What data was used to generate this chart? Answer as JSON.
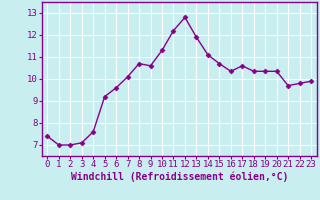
{
  "x": [
    0,
    1,
    2,
    3,
    4,
    5,
    6,
    7,
    8,
    9,
    10,
    11,
    12,
    13,
    14,
    15,
    16,
    17,
    18,
    19,
    20,
    21,
    22,
    23
  ],
  "y": [
    7.4,
    7.0,
    7.0,
    7.1,
    7.6,
    9.2,
    9.6,
    10.1,
    10.7,
    10.6,
    11.3,
    12.2,
    12.8,
    11.9,
    11.1,
    10.7,
    10.35,
    10.6,
    10.35,
    10.35,
    10.35,
    9.7,
    9.8,
    9.9
  ],
  "line_color": "#880088",
  "marker": "D",
  "marker_size": 2.5,
  "linewidth": 1.0,
  "xlabel": "Windchill (Refroidissement éolien,°C)",
  "xlabel_fontsize": 7,
  "xtick_labels": [
    "0",
    "1",
    "2",
    "3",
    "4",
    "5",
    "6",
    "7",
    "8",
    "9",
    "10",
    "11",
    "12",
    "13",
    "14",
    "15",
    "16",
    "17",
    "18",
    "19",
    "20",
    "21",
    "22",
    "23"
  ],
  "ylim": [
    6.5,
    13.5
  ],
  "yticks": [
    7,
    8,
    9,
    10,
    11,
    12,
    13
  ],
  "xlim": [
    -0.5,
    23.5
  ],
  "background_color": "#c8eef0",
  "grid_color": "#ffffff",
  "tick_color": "#880088",
  "tick_fontsize": 6.5,
  "spine_color": "#880088",
  "grid_linewidth": 0.8
}
